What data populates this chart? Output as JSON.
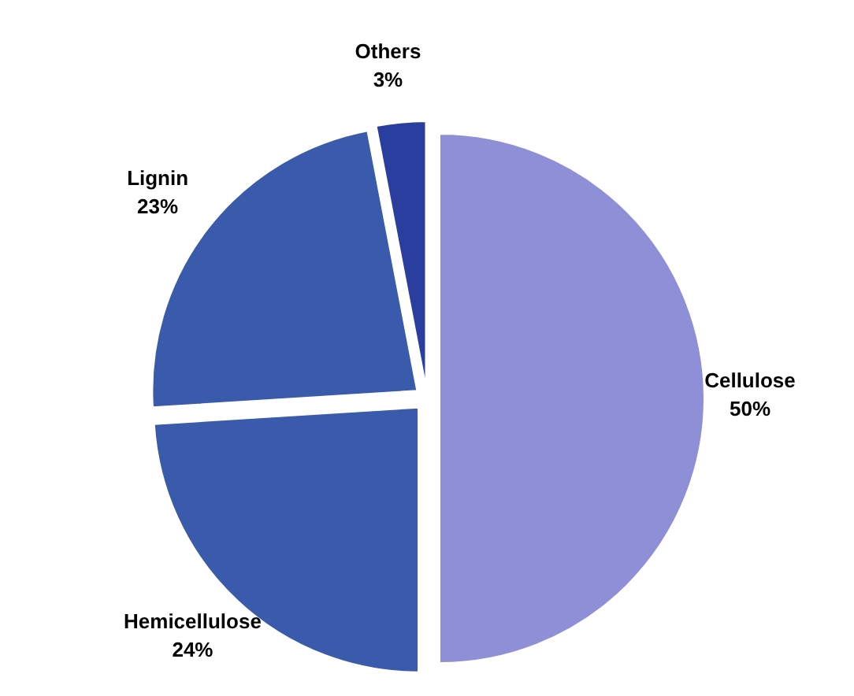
{
  "chart_data": {
    "type": "pie",
    "categories": [
      "Cellulose",
      "Hemicellulose",
      "Lignin",
      "Others"
    ],
    "values": [
      50,
      24,
      23,
      3
    ],
    "value_labels": [
      "50%",
      "24%",
      "23%",
      "3%"
    ],
    "colors": [
      "#8e8fd6",
      "#3a5aab",
      "#3a5aab",
      "#2a3ea0"
    ],
    "legend": false
  }
}
